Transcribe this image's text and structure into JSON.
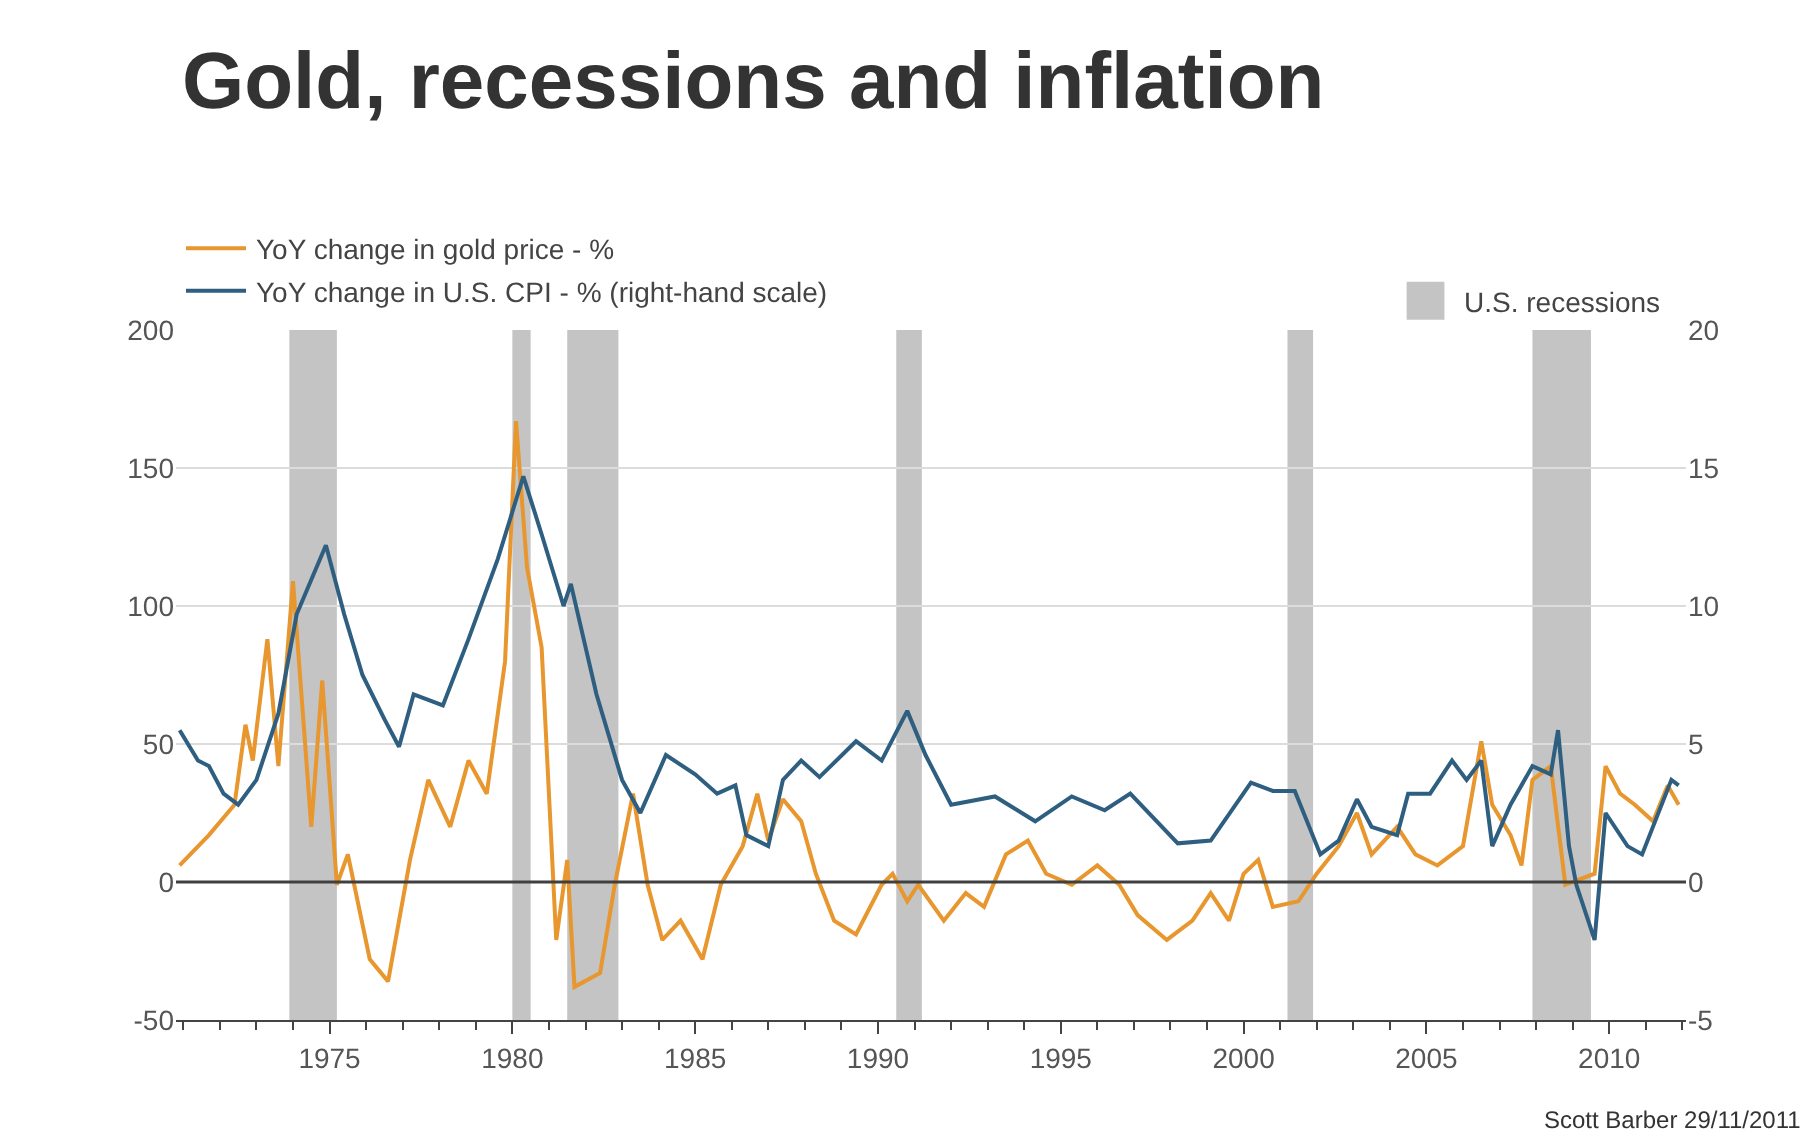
{
  "chart_data": {
    "type": "line",
    "title": "Gold, recessions and inflation",
    "annotations": [
      "Scott Barber 29/11/2011"
    ],
    "xlim": [
      1970.8,
      2012.1
    ],
    "xticks": [
      1975,
      1980,
      1985,
      1990,
      1995,
      2000,
      2005,
      2010
    ],
    "ylim": [
      -50,
      200
    ],
    "yticks": [
      -50,
      0,
      50,
      100,
      150,
      200
    ],
    "y2lim": [
      -5,
      20
    ],
    "y2ticks": [
      -5,
      0,
      5,
      10,
      15,
      20
    ],
    "grid": "y",
    "legend": "top left",
    "line_style": "solid",
    "marker": "none",
    "ref_lines": [
      {
        "axis": "y",
        "value": 0,
        "color": "#404040"
      }
    ],
    "bands": [
      {
        "axis": "x",
        "from": 1973.9,
        "to": 1975.2,
        "label": "U.S. recessions",
        "color": "#c4c4c4"
      },
      {
        "axis": "x",
        "from": 1980.0,
        "to": 1980.5,
        "color": "#c4c4c4"
      },
      {
        "axis": "x",
        "from": 1981.5,
        "to": 1982.9,
        "color": "#c4c4c4"
      },
      {
        "axis": "x",
        "from": 1990.5,
        "to": 1991.2,
        "color": "#c4c4c4"
      },
      {
        "axis": "x",
        "from": 2001.2,
        "to": 2001.9,
        "color": "#c4c4c4"
      },
      {
        "axis": "x",
        "from": 2007.9,
        "to": 2009.5,
        "color": "#c4c4c4"
      }
    ],
    "series": [
      {
        "name": "YoY change in gold price - %",
        "color": "#e8962e",
        "x": [
          1970.9,
          1971.7,
          1972.4,
          1972.7,
          1972.9,
          1973.3,
          1973.6,
          1974.0,
          1974.5,
          1974.8,
          1975.2,
          1975.5,
          1976.1,
          1976.6,
          1977.2,
          1977.7,
          1978.3,
          1978.8,
          1979.3,
          1979.8,
          1980.1,
          1980.4,
          1980.8,
          1981.2,
          1981.5,
          1981.7,
          1982.4,
          1982.8,
          1983.3,
          1983.7,
          1984.1,
          1984.6,
          1985.2,
          1985.7,
          1986.3,
          1986.7,
          1987.0,
          1987.4,
          1987.9,
          1988.3,
          1988.8,
          1989.4,
          1990.1,
          1990.4,
          1990.8,
          1991.1,
          1991.8,
          1992.4,
          1992.9,
          1993.5,
          1994.1,
          1994.6,
          1995.3,
          1996.0,
          1996.6,
          1997.1,
          1997.9,
          1998.6,
          1999.1,
          1999.6,
          2000.0,
          2000.4,
          2000.8,
          2001.5,
          2002.0,
          2002.6,
          2003.1,
          2003.5,
          2004.2,
          2004.7,
          2005.3,
          2006.0,
          2006.5,
          2006.8,
          2007.3,
          2007.6,
          2007.9,
          2008.4,
          2008.8,
          2009.2,
          2009.6,
          2009.9,
          2010.3,
          2010.7,
          2011.2,
          2011.6,
          2011.9
        ],
        "values": [
          6,
          17,
          28,
          57,
          44,
          88,
          42,
          109,
          20,
          73,
          -1,
          10,
          -28,
          -36,
          8,
          37,
          20,
          44,
          32,
          80,
          167,
          114,
          85,
          -21,
          8,
          -38,
          -33,
          -1,
          32,
          -1,
          -21,
          -14,
          -28,
          -1,
          13,
          32,
          15,
          30,
          22,
          3,
          -14,
          -19,
          -1,
          3,
          -7,
          -1,
          -14,
          -4,
          -9,
          10,
          15,
          3,
          -1,
          6,
          -1,
          -12,
          -21,
          -14,
          -4,
          -14,
          3,
          8,
          -9,
          -7,
          3,
          13,
          25,
          10,
          20,
          10,
          6,
          13,
          51,
          28,
          17,
          6,
          37,
          42,
          -1,
          1,
          3,
          42,
          32,
          28,
          22,
          35,
          28
        ]
      },
      {
        "name": "YoY change in U.S. CPI - % (right-hand scale)",
        "color": "#2f5f80",
        "axis": "y2",
        "x": [
          1970.9,
          1971.4,
          1971.7,
          1972.1,
          1972.5,
          1973.0,
          1973.6,
          1974.1,
          1974.9,
          1975.4,
          1975.9,
          1976.5,
          1976.9,
          1977.3,
          1978.1,
          1978.8,
          1979.6,
          1980.3,
          1980.8,
          1981.4,
          1981.6,
          1982.3,
          1983.0,
          1983.5,
          1984.2,
          1985.0,
          1985.6,
          1986.1,
          1986.4,
          1987.0,
          1987.4,
          1987.9,
          1988.4,
          1989.4,
          1990.1,
          1990.8,
          1991.3,
          1992.0,
          1993.2,
          1994.3,
          1995.3,
          1996.2,
          1996.9,
          1998.2,
          1999.1,
          2000.2,
          2000.8,
          2001.4,
          2002.1,
          2002.6,
          2003.1,
          2003.5,
          2004.2,
          2004.5,
          2005.1,
          2005.7,
          2006.1,
          2006.5,
          2006.8,
          2007.3,
          2007.9,
          2008.4,
          2008.6,
          2008.9,
          2009.1,
          2009.6,
          2009.9,
          2010.5,
          2010.9,
          2011.7,
          2011.9
        ],
        "values": [
          5.5,
          4.4,
          4.2,
          3.2,
          2.8,
          3.7,
          6.1,
          9.7,
          12.2,
          9.7,
          7.5,
          5.9,
          4.9,
          6.8,
          6.4,
          8.8,
          11.7,
          14.7,
          12.6,
          10.0,
          10.8,
          6.8,
          3.7,
          2.5,
          4.6,
          3.9,
          3.2,
          3.5,
          1.7,
          1.3,
          3.7,
          4.4,
          3.8,
          5.1,
          4.4,
          6.2,
          4.6,
          2.8,
          3.1,
          2.2,
          3.1,
          2.6,
          3.2,
          1.4,
          1.5,
          3.6,
          3.3,
          3.3,
          1.0,
          1.5,
          3.0,
          2.0,
          1.7,
          3.2,
          3.2,
          4.4,
          3.7,
          4.4,
          1.3,
          2.8,
          4.2,
          3.9,
          5.5,
          1.3,
          -0.1,
          -2.1,
          2.5,
          1.3,
          1.0,
          3.7,
          3.5
        ]
      }
    ]
  }
}
